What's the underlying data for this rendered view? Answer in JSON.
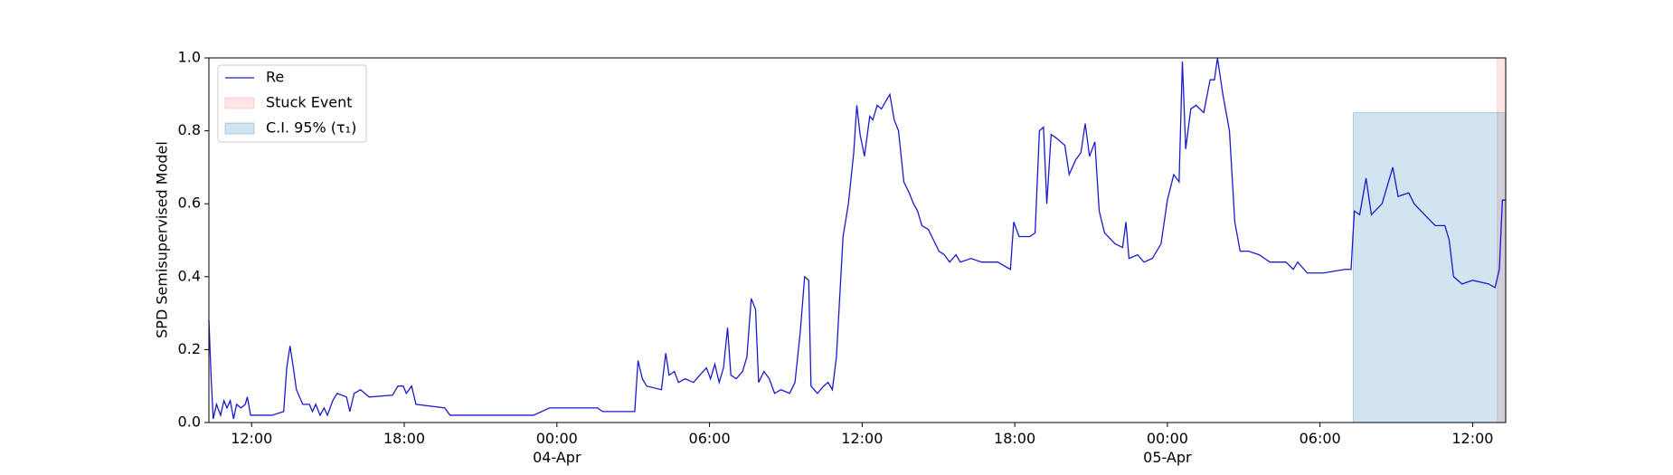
{
  "chart_data": {
    "type": "line",
    "ylabel": "SPD Semisupervised Model",
    "x": [
      10.32,
      10.41,
      10.49,
      10.62,
      10.78,
      10.91,
      11.03,
      11.16,
      11.29,
      11.41,
      11.58,
      11.75,
      11.83,
      11.96,
      12.8,
      13.26,
      13.38,
      13.51,
      13.64,
      13.76,
      14.01,
      14.27,
      14.39,
      14.52,
      14.69,
      14.85,
      14.98,
      15.19,
      15.36,
      15.73,
      15.86,
      16.03,
      16.28,
      16.62,
      17.54,
      17.75,
      17.96,
      18.08,
      18.29,
      18.46,
      19.59,
      19.8,
      23.08,
      23.71,
      25.6,
      25.8,
      27.06,
      27.19,
      27.36,
      27.53,
      28.11,
      28.28,
      28.41,
      28.62,
      28.78,
      29.04,
      29.37,
      29.62,
      29.88,
      30.04,
      30.21,
      30.38,
      30.55,
      30.71,
      30.84,
      31.05,
      31.3,
      31.47,
      31.64,
      31.81,
      31.93,
      32.14,
      32.35,
      32.56,
      32.81,
      33.15,
      33.36,
      33.57,
      33.74,
      33.9,
      33.99,
      34.24,
      34.49,
      34.66,
      34.83,
      34.99,
      35.25,
      35.46,
      35.67,
      35.79,
      35.92,
      36.09,
      36.3,
      36.42,
      36.59,
      36.76,
      36.92,
      37.09,
      37.26,
      37.43,
      37.64,
      37.85,
      38.02,
      38.18,
      38.35,
      38.6,
      38.81,
      39.02,
      39.23,
      39.44,
      39.69,
      39.86,
      40.28,
      40.7,
      41.33,
      41.83,
      41.96,
      42.17,
      42.59,
      42.8,
      42.97,
      43.13,
      43.26,
      43.43,
      43.64,
      43.97,
      44.14,
      44.39,
      44.6,
      44.77,
      44.94,
      45.15,
      45.32,
      45.53,
      45.95,
      46.24,
      46.37,
      46.49,
      46.83,
      47.08,
      47.41,
      47.75,
      48.0,
      48.25,
      48.46,
      48.59,
      48.72,
      48.92,
      49.13,
      49.43,
      49.68,
      49.85,
      49.97,
      50.18,
      50.44,
      50.65,
      50.86,
      51.19,
      51.61,
      52.03,
      52.66,
      52.95,
      53.12,
      53.5,
      54.13,
      54.97,
      55.22,
      55.35,
      55.56,
      55.81,
      56.02,
      56.44,
      56.86,
      57.07,
      57.49,
      57.7,
      58.11,
      58.53,
      58.91,
      59.08,
      59.25,
      59.58,
      60.0,
      60.63,
      60.88,
      61.05,
      61.17,
      61.3
    ],
    "series": [
      {
        "name": "Re",
        "color": "#1a1acd",
        "values": [
          0.28,
          0.12,
          0.01,
          0.05,
          0.02,
          0.06,
          0.04,
          0.06,
          0.01,
          0.05,
          0.04,
          0.05,
          0.07,
          0.02,
          0.02,
          0.03,
          0.15,
          0.21,
          0.15,
          0.09,
          0.05,
          0.05,
          0.03,
          0.05,
          0.02,
          0.04,
          0.02,
          0.06,
          0.08,
          0.07,
          0.03,
          0.08,
          0.09,
          0.07,
          0.075,
          0.1,
          0.1,
          0.08,
          0.1,
          0.05,
          0.04,
          0.02,
          0.02,
          0.04,
          0.04,
          0.03,
          0.03,
          0.17,
          0.12,
          0.1,
          0.09,
          0.19,
          0.13,
          0.14,
          0.11,
          0.12,
          0.11,
          0.13,
          0.15,
          0.12,
          0.16,
          0.11,
          0.15,
          0.26,
          0.13,
          0.12,
          0.14,
          0.18,
          0.34,
          0.31,
          0.11,
          0.14,
          0.12,
          0.08,
          0.09,
          0.08,
          0.11,
          0.25,
          0.4,
          0.39,
          0.1,
          0.08,
          0.1,
          0.11,
          0.09,
          0.18,
          0.51,
          0.6,
          0.74,
          0.87,
          0.79,
          0.73,
          0.84,
          0.83,
          0.87,
          0.86,
          0.88,
          0.9,
          0.83,
          0.8,
          0.66,
          0.63,
          0.6,
          0.58,
          0.54,
          0.53,
          0.5,
          0.47,
          0.46,
          0.44,
          0.46,
          0.44,
          0.45,
          0.44,
          0.44,
          0.42,
          0.55,
          0.51,
          0.51,
          0.52,
          0.8,
          0.81,
          0.6,
          0.79,
          0.78,
          0.76,
          0.68,
          0.72,
          0.74,
          0.82,
          0.73,
          0.77,
          0.58,
          0.52,
          0.49,
          0.48,
          0.55,
          0.45,
          0.46,
          0.44,
          0.45,
          0.49,
          0.61,
          0.68,
          0.66,
          0.99,
          0.75,
          0.86,
          0.87,
          0.85,
          0.94,
          0.94,
          1.0,
          0.9,
          0.8,
          0.55,
          0.47,
          0.47,
          0.46,
          0.44,
          0.44,
          0.42,
          0.44,
          0.41,
          0.41,
          0.42,
          0.42,
          0.58,
          0.57,
          0.67,
          0.57,
          0.6,
          0.7,
          0.62,
          0.63,
          0.6,
          0.57,
          0.54,
          0.54,
          0.5,
          0.4,
          0.38,
          0.39,
          0.38,
          0.37,
          0.42,
          0.61,
          0.61
        ]
      }
    ],
    "regions": [
      {
        "name": "Stuck Event",
        "color": "#ff0000",
        "alpha": 0.1,
        "x": [
          60.97,
          61.3
        ],
        "y": [
          0,
          1.0
        ]
      },
      {
        "name": "C.I. 95% (τ₁)",
        "color": "#1f77b4",
        "alpha": 0.2,
        "x": [
          55.31,
          61.3
        ],
        "y": [
          0,
          0.85
        ]
      }
    ],
    "xlim": [
      10.32,
      61.3
    ],
    "xticks": [
      {
        "value": 12,
        "label": "12:00"
      },
      {
        "value": 18,
        "label": "18:00"
      },
      {
        "value": 24,
        "label": "00:00\n04-Apr"
      },
      {
        "value": 30,
        "label": "06:00"
      },
      {
        "value": 36,
        "label": "12:00"
      },
      {
        "value": 42,
        "label": "18:00"
      },
      {
        "value": 48,
        "label": "00:00\n05-Apr"
      },
      {
        "value": 54,
        "label": "06:00"
      },
      {
        "value": 60,
        "label": "12:00"
      }
    ],
    "ylim": [
      0,
      1.0
    ],
    "yticks": [
      {
        "value": 0,
        "label": "0.0"
      },
      {
        "value": 0.2,
        "label": "0.2"
      },
      {
        "value": 0.4,
        "label": "0.4"
      },
      {
        "value": 0.6,
        "label": "0.6"
      },
      {
        "value": 0.8,
        "label": "0.8"
      },
      {
        "value": 1.0,
        "label": "1.0"
      }
    ],
    "legend": "upper left",
    "grid": false
  }
}
